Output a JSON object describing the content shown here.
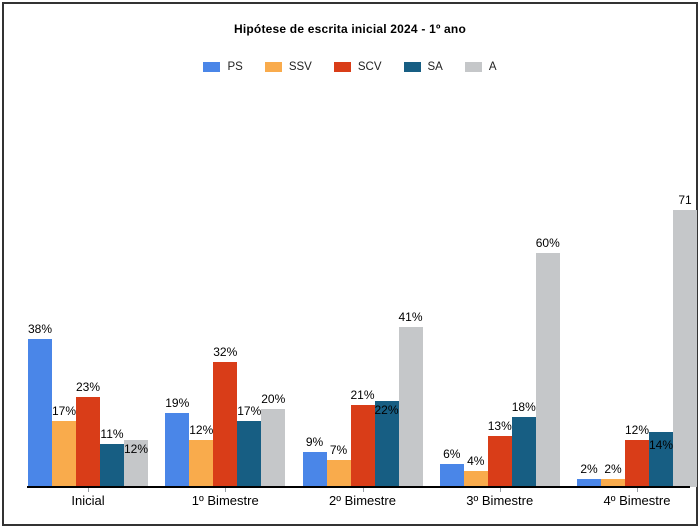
{
  "chart_data": {
    "type": "bar",
    "title": "Hipótese de escrita inicial 2024 - 1º ano",
    "categories": [
      "Inicial",
      "1º Bimestre",
      "2º Bimestre",
      "3º Bimestre",
      "4º Bimestre"
    ],
    "series": [
      {
        "name": "PS",
        "color": "#4a86e8",
        "values": [
          38,
          19,
          9,
          6,
          2
        ],
        "labels": [
          "38%",
          "19%",
          "9%",
          "6%",
          "2%"
        ]
      },
      {
        "name": "SSV",
        "color": "#f9ab4c",
        "values": [
          17,
          12,
          7,
          4,
          2
        ],
        "labels": [
          "17%",
          "12%",
          "7%",
          "4%",
          "2%"
        ]
      },
      {
        "name": "SCV",
        "color": "#d93d18",
        "values": [
          23,
          32,
          21,
          13,
          12
        ],
        "labels": [
          "23%",
          "32%",
          "21%",
          "13%",
          "12%"
        ]
      },
      {
        "name": "SA",
        "color": "#175e83",
        "values": [
          11,
          17,
          22,
          18,
          14
        ],
        "labels": [
          "11%",
          "17%",
          "22%",
          "18%",
          "14%"
        ]
      },
      {
        "name": "A",
        "color": "#c5c7c9",
        "values": [
          12,
          20,
          41,
          60,
          71
        ],
        "labels": [
          "12%",
          "20%",
          "41%",
          "60%",
          "71"
        ]
      }
    ],
    "ylim": [
      0,
      75
    ],
    "grid": false,
    "y_axis_visible": false,
    "legend_position": "top",
    "value_suffix": "%",
    "axis_color": "#000000",
    "label_color": "#000000",
    "background": "#ffffff",
    "border_color": "#333333"
  }
}
